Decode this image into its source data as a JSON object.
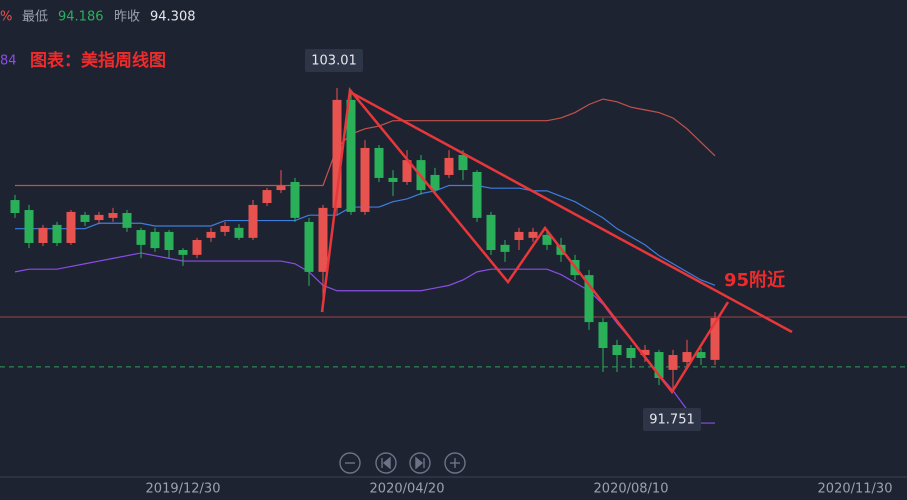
{
  "chart_data": {
    "type": "candlestick",
    "title": "图表：美指周线图",
    "annotation": "95附近",
    "info": {
      "percent_sign": "%",
      "indicator_value": "84",
      "low_label": "最低",
      "low": 94.186,
      "prev_close_label": "昨收",
      "prev_close": 94.308
    },
    "categories": [
      null,
      null,
      null,
      null,
      null,
      null,
      null,
      null,
      null,
      null,
      null,
      null,
      "2019/12/30",
      null,
      null,
      null,
      null,
      null,
      null,
      null,
      null,
      null,
      null,
      null,
      null,
      null,
      null,
      null,
      "2020/04/20",
      null,
      null,
      null,
      null,
      null,
      null,
      null,
      null,
      null,
      null,
      null,
      null,
      null,
      null,
      null,
      "2020/08/10",
      null,
      null,
      null,
      null,
      null,
      null,
      null,
      null,
      null,
      null,
      null,
      null,
      null,
      null,
      null,
      "2020/11/30"
    ],
    "open": [
      98.86,
      98.49,
      97.27,
      97.94,
      97.27,
      98.31,
      98.12,
      98.2,
      98.38,
      97.75,
      97.68,
      97.68,
      97.01,
      96.83,
      97.46,
      97.68,
      97.83,
      97.46,
      98.75,
      99.23,
      99.53,
      98.05,
      96.2,
      98.57,
      102.57,
      98.42,
      100.79,
      99.68,
      99.53,
      100.34,
      99.79,
      99.79,
      100.53,
      99.9,
      98.31,
      97.2,
      97.38,
      97.46,
      97.57,
      97.2,
      96.64,
      96.08,
      94.34,
      93.49,
      93.38,
      93.12,
      93.23,
      92.57,
      92.86,
      93.23,
      92.94,
      null,
      null,
      null,
      null,
      null,
      null,
      null,
      null,
      null,
      null
    ],
    "high": [
      99.05,
      98.68,
      97.94,
      98.05,
      98.49,
      98.42,
      98.42,
      98.57,
      98.49,
      97.83,
      97.83,
      97.75,
      97.08,
      97.46,
      97.83,
      98.05,
      97.97,
      98.86,
      99.31,
      99.97,
      99.68,
      98.2,
      98.68,
      103.01,
      102.86,
      101.08,
      100.9,
      99.97,
      100.71,
      100.53,
      100.05,
      100.71,
      100.71,
      99.97,
      98.42,
      97.38,
      97.83,
      97.83,
      97.75,
      97.46,
      96.83,
      96.27,
      94.49,
      93.68,
      93.49,
      93.49,
      93.31,
      93.31,
      93.68,
      93.38,
      94.71,
      null,
      null,
      null,
      null,
      null,
      null,
      null,
      null,
      null,
      null
    ],
    "low": [
      98.2,
      97.08,
      97.16,
      97.16,
      97.2,
      97.9,
      97.97,
      98.05,
      97.68,
      96.71,
      96.94,
      96.71,
      96.42,
      96.71,
      97.31,
      97.53,
      97.38,
      97.38,
      98.64,
      99.12,
      98.05,
      95.68,
      94.71,
      98.31,
      98.31,
      98.31,
      99.53,
      99.01,
      99.42,
      99.05,
      99.05,
      99.68,
      99.6,
      98.05,
      96.83,
      96.57,
      97.01,
      97.31,
      97.01,
      96.57,
      95.9,
      94.05,
      92.49,
      92.49,
      92.64,
      92.86,
      92.01,
      91.751,
      92.64,
      92.75,
      92.75,
      null,
      null,
      null,
      null,
      null,
      null,
      null,
      null,
      null,
      null
    ],
    "close": [
      98.38,
      97.27,
      97.83,
      97.27,
      98.42,
      98.05,
      98.31,
      98.38,
      97.83,
      97.2,
      97.08,
      97.01,
      96.83,
      97.38,
      97.68,
      97.9,
      97.46,
      98.68,
      99.23,
      99.38,
      98.2,
      96.2,
      98.57,
      102.57,
      98.42,
      100.79,
      99.68,
      99.53,
      100.34,
      99.23,
      99.23,
      100.42,
      99.97,
      98.2,
      97.01,
      96.94,
      97.68,
      97.68,
      97.2,
      96.83,
      96.08,
      94.34,
      93.38,
      93.12,
      93.01,
      93.31,
      92.27,
      93.12,
      93.23,
      93.01,
      94.49,
      null,
      null,
      null,
      null,
      null,
      null,
      null,
      null,
      null,
      null
    ],
    "up_color": "#e8534f",
    "down_color": "#2bb05a",
    "bands": [
      {
        "color": "#c4514a",
        "values": [
          99.4,
          99.4,
          99.4,
          99.4,
          99.4,
          99.4,
          99.4,
          99.4,
          99.4,
          99.4,
          99.4,
          99.4,
          99.4,
          99.4,
          99.4,
          99.4,
          99.4,
          99.4,
          99.4,
          99.4,
          99.4,
          99.4,
          99.4,
          100.8,
          101.3,
          101.5,
          101.6,
          101.8,
          101.8,
          101.8,
          101.8,
          101.8,
          101.8,
          101.8,
          101.8,
          101.8,
          101.8,
          101.8,
          101.8,
          101.9,
          102.1,
          102.4,
          102.6,
          102.5,
          102.3,
          102.2,
          102.1,
          101.9,
          101.5,
          101.0,
          100.5,
          null,
          null,
          null,
          null,
          null,
          null,
          null,
          null,
          null,
          null
        ]
      },
      {
        "color": "#3f7de0",
        "values": [
          97.8,
          97.8,
          97.8,
          97.8,
          97.8,
          97.8,
          98.0,
          98.0,
          98.0,
          98.0,
          97.9,
          97.9,
          97.9,
          97.9,
          97.9,
          98.1,
          98.1,
          98.1,
          98.1,
          98.1,
          98.1,
          98.3,
          98.3,
          98.3,
          98.6,
          98.6,
          98.6,
          98.8,
          98.9,
          99.1,
          99.2,
          99.4,
          99.4,
          99.4,
          99.3,
          99.3,
          99.3,
          99.2,
          99.2,
          99.0,
          98.8,
          98.5,
          98.2,
          97.8,
          97.5,
          97.2,
          96.8,
          96.5,
          96.2,
          95.9,
          95.7,
          null,
          null,
          null,
          null,
          null,
          null,
          null,
          null,
          null,
          null
        ]
      },
      {
        "color": "#8a4de8",
        "values": [
          96.2,
          96.3,
          96.3,
          96.3,
          96.4,
          96.5,
          96.6,
          96.7,
          96.8,
          96.9,
          96.8,
          96.7,
          96.6,
          96.6,
          96.6,
          96.6,
          96.6,
          96.6,
          96.6,
          96.6,
          96.5,
          96.2,
          95.7,
          95.5,
          95.5,
          95.5,
          95.5,
          95.5,
          95.5,
          95.5,
          95.6,
          95.7,
          95.9,
          96.2,
          96.3,
          96.3,
          96.3,
          96.3,
          96.3,
          96.1,
          95.8,
          95.5,
          95.0,
          94.3,
          93.7,
          93.0,
          92.4,
          91.8,
          91.1,
          90.6,
          90.6,
          null,
          null,
          null,
          null,
          null,
          null,
          null,
          null,
          null,
          null
        ]
      }
    ],
    "reference_lines": [
      {
        "value": 94.53,
        "color": "#9c4346",
        "dashed": false
      },
      {
        "value": 92.68,
        "color": "#2f9e5a",
        "dashed": true
      }
    ],
    "ylim": [
      87.75,
      106.27
    ]
  }
}
